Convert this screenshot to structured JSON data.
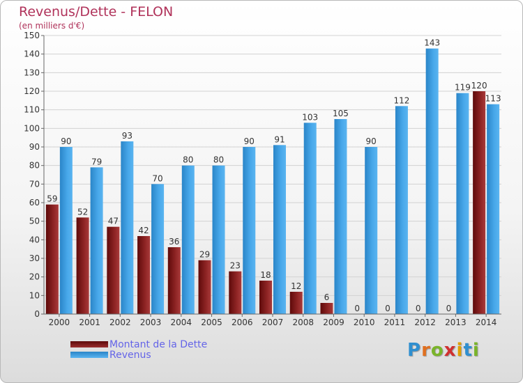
{
  "brand": {
    "letters": [
      "P",
      "r",
      "o",
      "x",
      "i",
      "t",
      "i"
    ],
    "colors": [
      "#2f8fd0",
      "#e07020",
      "#7ab42a",
      "#d03030",
      "#e0a000",
      "#2f8fd0",
      "#7ab42a"
    ]
  },
  "chart_data": {
    "type": "bar",
    "title": "Revenus/Dette - FELON",
    "subtitle": "(en milliers d'€)",
    "categories": [
      "2000",
      "2001",
      "2002",
      "2003",
      "2004",
      "2005",
      "2006",
      "2007",
      "2008",
      "2009",
      "2010",
      "2011",
      "2012",
      "2013",
      "2014"
    ],
    "series": [
      {
        "name": "Montant de la Dette",
        "color": "#8b1a1a",
        "values": [
          59,
          52,
          47,
          42,
          36,
          29,
          23,
          18,
          12,
          6,
          0,
          0,
          0,
          0,
          120
        ]
      },
      {
        "name": "Revenus",
        "color": "#3a9ee0",
        "values": [
          90,
          79,
          93,
          70,
          80,
          80,
          90,
          91,
          103,
          105,
          90,
          112,
          143,
          119,
          113
        ]
      }
    ],
    "ylim": [
      0,
      150
    ],
    "yticks": [
      0,
      10,
      20,
      30,
      40,
      50,
      60,
      70,
      80,
      90,
      100,
      110,
      120,
      130,
      140,
      150
    ],
    "grid": true,
    "legend_position": "bottom-left"
  }
}
